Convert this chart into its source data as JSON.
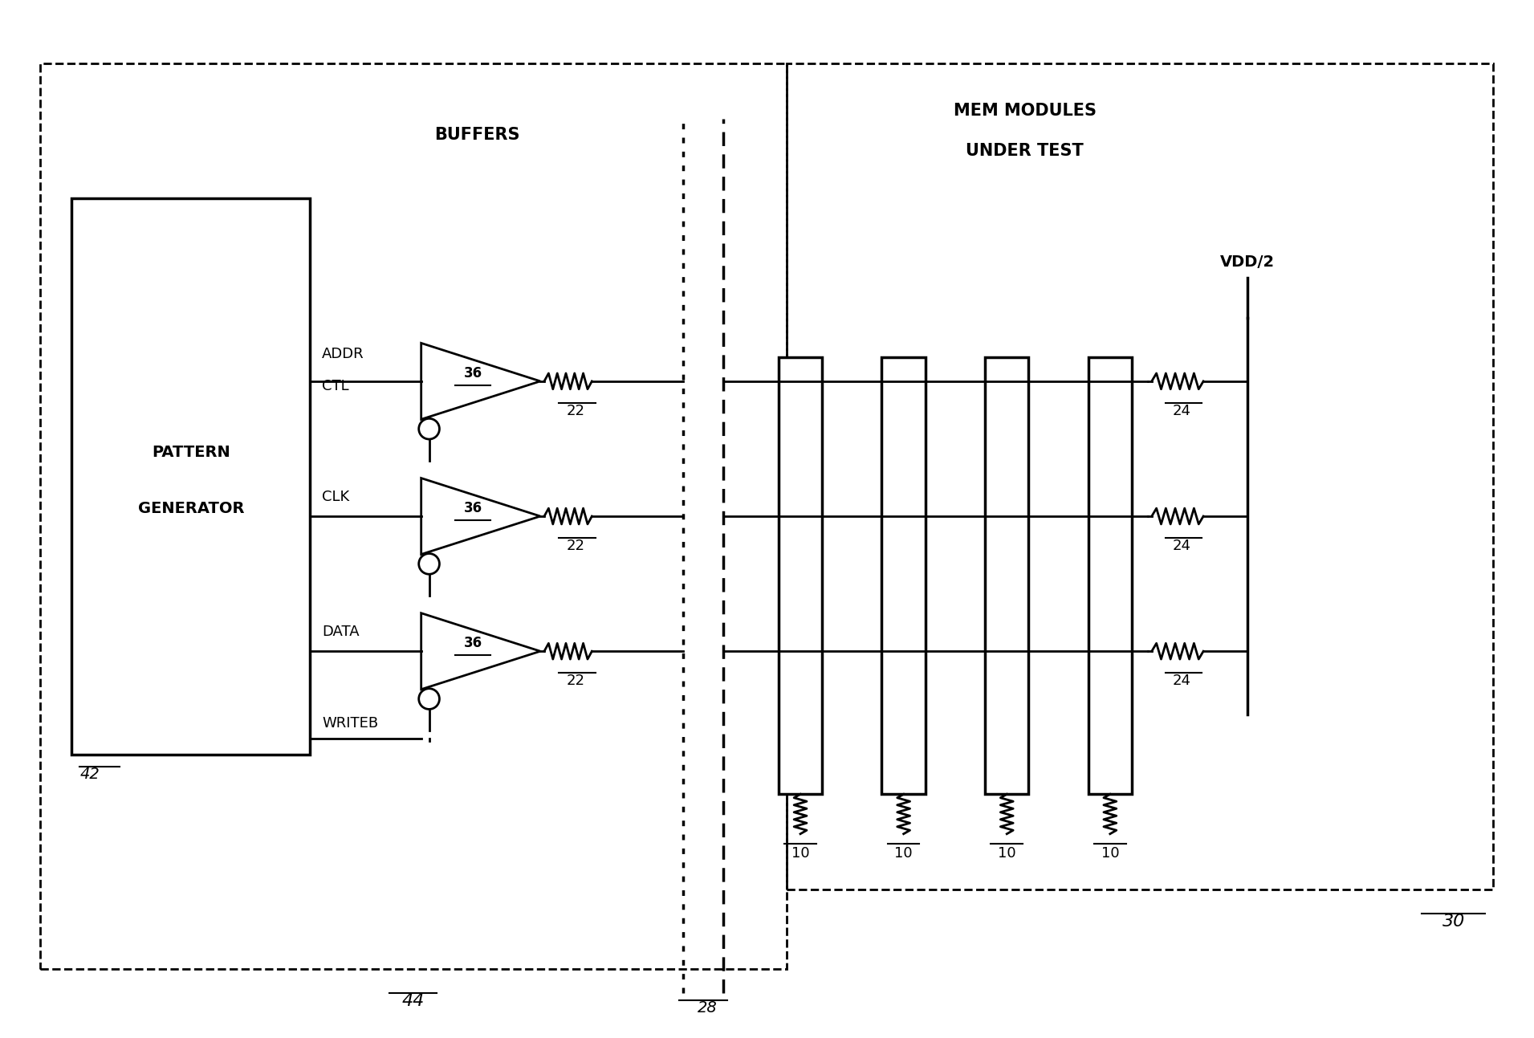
{
  "bg_color": "#ffffff",
  "line_color": "#000000",
  "line_width": 2.0,
  "fig_width": 19.11,
  "fig_height": 12.93,
  "dpi": 100,
  "title": "",
  "labels": {
    "pattern_gen": [
      "PATTERN",
      "GENERATOR"
    ],
    "buffers": "BUFFERS",
    "mem_modules": [
      "MEM MODULES",
      "UNDER TEST"
    ],
    "vdd2": "VDD/2",
    "addr_ctl": [
      "ADDR",
      "CTL"
    ],
    "clk": "CLK",
    "data": "DATA",
    "writeb": "WRITEB",
    "ref36_1": "36",
    "ref36_2": "36",
    "ref36_3": "36",
    "ref22_1": "22",
    "ref22_2": "22",
    "ref22_3": "22",
    "ref10_1": "10",
    "ref10_2": "10",
    "ref10_3": "10",
    "ref10_4": "10",
    "ref24_1": "24",
    "ref24_2": "24",
    "ref24_3": "24",
    "ref42": "42",
    "ref44": "44",
    "ref28": "28",
    "ref30": "30"
  }
}
